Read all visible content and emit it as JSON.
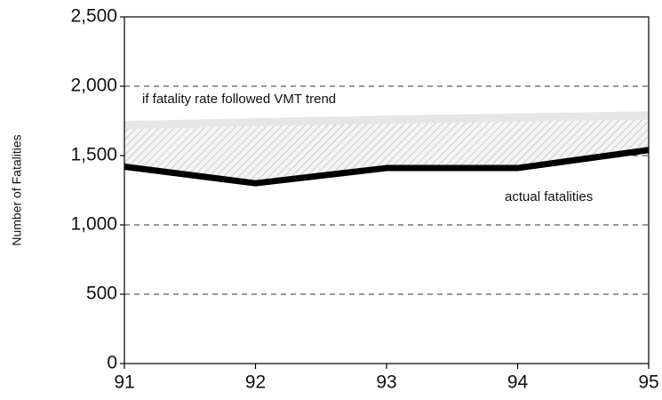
{
  "chart_data": {
    "type": "line",
    "y_label": "Number of Fatalities",
    "x": [
      91,
      92,
      93,
      94,
      95
    ],
    "xlim": [
      91,
      95
    ],
    "xticks": [
      91,
      92,
      93,
      94,
      95
    ],
    "ylim": [
      0,
      2500
    ],
    "yticks": [
      0,
      {
        "value": 500,
        "label": "500"
      },
      {
        "value": 1000,
        "label": "1,000"
      },
      {
        "value": 1500,
        "label": "1,500"
      },
      {
        "value": 2000,
        "label": "2,000"
      },
      {
        "value": 2500,
        "label": "2,500"
      }
    ],
    "grid": true,
    "series": [
      {
        "name": "if fatality rate followed VMT trend",
        "color": "#e6e6e6",
        "values": [
          1720,
          1740,
          1760,
          1775,
          1790
        ]
      },
      {
        "name": "actual fatalities",
        "color": "#000000",
        "values": [
          1420,
          1300,
          1410,
          1410,
          1540
        ]
      }
    ]
  }
}
